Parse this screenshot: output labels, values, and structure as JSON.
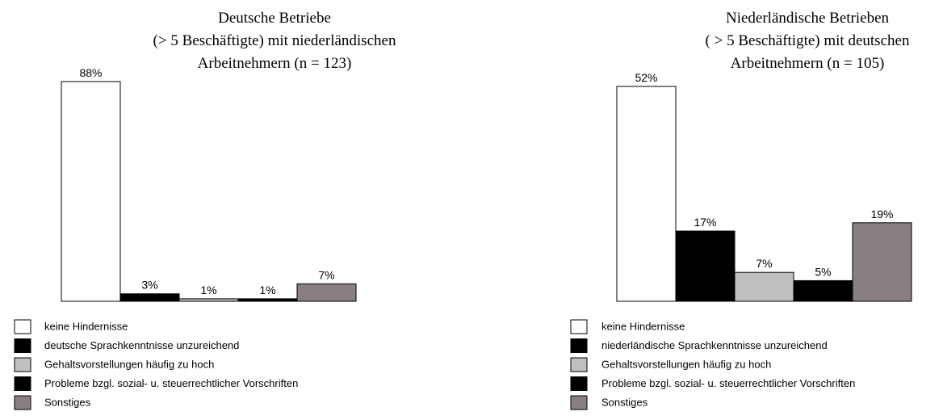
{
  "chart_data": [
    {
      "type": "bar",
      "title": [
        "Deutsche Betriebe",
        "(> 5 Beschäftigte) mit niederländischen",
        "Arbeitnehmern (n = 123)"
      ],
      "categories": [
        "keine Hindernisse",
        "deutsche Sprachkenntnisse unzureichend",
        "Gehaltsvorstellungen häufig zu hoch",
        "Probleme bzgl.  sozial- u. steuerrechtlicher Vorschriften",
        "Sonstiges"
      ],
      "values": [
        88,
        3,
        1,
        1,
        7
      ],
      "value_labels": [
        "88%",
        "3%",
        "1%",
        "1%",
        "7%"
      ],
      "colors": [
        "#ffffff",
        "#000000",
        "#c0c0c0",
        "#000000",
        "#877f80"
      ]
    },
    {
      "type": "bar",
      "title": [
        "Niederländische Betrieben",
        "( > 5 Beschäftigte) mit deutschen",
        "Arbeitnehmern (n = 105)"
      ],
      "categories": [
        "keine Hindernisse",
        "niederländische Sprachkenntnisse unzureichend",
        "Gehaltsvorstellungen häufig zu hoch",
        "Probleme bzgl.  sozial- u. steuerrechtlicher Vorschriften",
        "Sonstiges"
      ],
      "values": [
        52,
        17,
        7,
        5,
        19
      ],
      "value_labels": [
        "52%",
        "17%",
        "7%",
        "5%",
        "19%"
      ],
      "colors": [
        "#ffffff",
        "#000000",
        "#c0c0c0",
        "#000000",
        "#877f80"
      ]
    }
  ]
}
